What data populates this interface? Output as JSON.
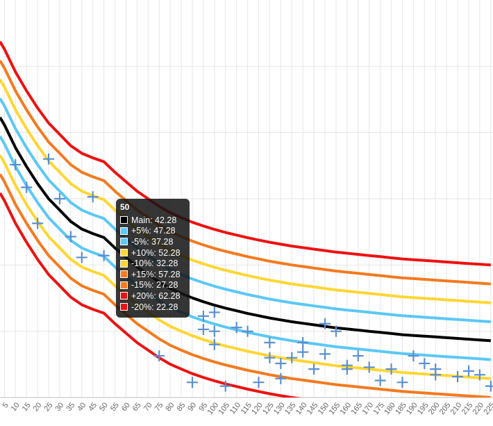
{
  "chart_data": {
    "type": "line",
    "title": "",
    "xlabel": "",
    "ylabel": "",
    "x_ticks": [
      5,
      10,
      15,
      20,
      25,
      30,
      35,
      40,
      45,
      50,
      55,
      60,
      65,
      70,
      75,
      80,
      85,
      90,
      95,
      100,
      105,
      110,
      115,
      120,
      125,
      130,
      135,
      140,
      145,
      150,
      155,
      160,
      165,
      170,
      175,
      180,
      185,
      190,
      195,
      200,
      205,
      210,
      215,
      220,
      225
    ],
    "xlim": [
      3,
      226
    ],
    "ylim": [
      0,
      105
    ],
    "grid": true,
    "legend": "none",
    "main_curve": {
      "x": [
        3,
        5,
        10,
        15,
        20,
        25,
        30,
        35,
        40,
        45,
        50,
        55,
        60,
        65,
        70,
        75,
        80,
        85,
        90,
        95,
        100,
        105,
        110,
        115,
        120,
        125,
        130,
        135,
        140,
        145,
        150,
        155,
        160,
        165,
        170,
        175,
        180,
        185,
        190,
        195,
        200,
        205,
        210,
        215,
        220,
        225
      ],
      "y": [
        74,
        72,
        66,
        61,
        56.5,
        52.5,
        49.5,
        46.5,
        44.5,
        43.3,
        42.28,
        39.5,
        37,
        34.5,
        32.5,
        30.5,
        28.8,
        27.5,
        26.3,
        25.3,
        24.4,
        23.6,
        22.9,
        22.2,
        21.6,
        21,
        20.5,
        20,
        19.6,
        19.2,
        18.8,
        18.4,
        18.1,
        17.8,
        17.5,
        17.2,
        16.9,
        16.6,
        16.4,
        16.2,
        16,
        15.8,
        15.6,
        15.4,
        15.2,
        15
      ]
    },
    "series": [
      {
        "name": "Main",
        "offset": 0,
        "color": "#000000"
      },
      {
        "name": "+5%",
        "offset": 5,
        "color": "#5bc8f5"
      },
      {
        "name": "-5%",
        "offset": -5,
        "color": "#5bc8f5"
      },
      {
        "name": "+10%",
        "offset": 10,
        "color": "#ffd633"
      },
      {
        "name": "-10%",
        "offset": -10,
        "color": "#ffd633"
      },
      {
        "name": "+15%",
        "offset": 15,
        "color": "#f47a1f"
      },
      {
        "name": "-15%",
        "offset": -15,
        "color": "#f47a1f"
      },
      {
        "name": "+20%",
        "offset": 20,
        "color": "#ee1111"
      },
      {
        "name": "-20%",
        "offset": -20,
        "color": "#ee1111"
      }
    ],
    "scatter": {
      "color": "#5a8fd0",
      "points": [
        [
          10,
          61.5
        ],
        [
          15,
          55.5
        ],
        [
          20,
          46
        ],
        [
          25,
          63
        ],
        [
          30,
          52.5
        ],
        [
          35,
          42.5
        ],
        [
          40,
          37
        ],
        [
          45,
          53
        ],
        [
          50,
          37.5
        ],
        [
          75,
          11
        ],
        [
          90,
          4
        ],
        [
          95,
          18
        ],
        [
          95,
          21.5
        ],
        [
          100,
          22.5
        ],
        [
          100,
          17.5
        ],
        [
          100,
          14
        ],
        [
          105,
          3
        ],
        [
          110,
          18.5
        ],
        [
          115,
          17.5
        ],
        [
          120,
          4
        ],
        [
          125,
          14.5
        ],
        [
          125,
          10.5
        ],
        [
          130,
          9
        ],
        [
          130,
          5
        ],
        [
          135,
          10.5
        ],
        [
          140,
          12
        ],
        [
          140,
          14.5
        ],
        [
          145,
          7.5
        ],
        [
          150,
          11.5
        ],
        [
          150,
          19.5
        ],
        [
          155,
          17.5
        ],
        [
          160,
          8.5
        ],
        [
          160,
          7.5
        ],
        [
          165,
          11
        ],
        [
          170,
          8
        ],
        [
          175,
          4.5
        ],
        [
          180,
          7.5
        ],
        [
          185,
          4
        ],
        [
          190,
          11
        ],
        [
          195,
          9
        ],
        [
          200,
          7.5
        ],
        [
          200,
          6
        ],
        [
          210,
          5.5
        ],
        [
          215,
          7
        ],
        [
          220,
          6
        ],
        [
          225,
          3
        ]
      ]
    },
    "tooltip": {
      "title": "50",
      "rows": [
        {
          "label": "Main: 42.28",
          "color": "#000000"
        },
        {
          "label": "+5%: 47.28",
          "color": "#5bc8f5"
        },
        {
          "label": "-5%: 37.28",
          "color": "#5bc8f5"
        },
        {
          "label": "+10%: 52.28",
          "color": "#ffd633"
        },
        {
          "label": "-10%: 32.28",
          "color": "#ffd633"
        },
        {
          "label": "+15%: 57.28",
          "color": "#f47a1f"
        },
        {
          "label": "-15%: 27.28",
          "color": "#f47a1f"
        },
        {
          "label": "+20%: 62.28",
          "color": "#ee1111"
        },
        {
          "label": "-20%: 22.28",
          "color": "#ee1111"
        }
      ]
    }
  }
}
